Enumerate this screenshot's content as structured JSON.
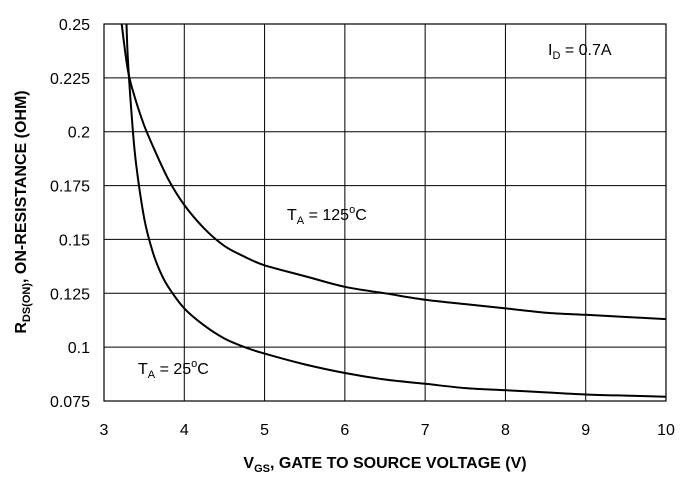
{
  "chart_data": {
    "type": "line",
    "xlabel": {
      "main": "V",
      "sub": "GS",
      "rest": ", GATE TO SOURCE VOLTAGE (V)"
    },
    "ylabel": {
      "main": "R",
      "sub": "DS(ON)",
      "rest": ", ON-RESISTANCE (OHM)"
    },
    "xlim": [
      3,
      10
    ],
    "ylim": [
      0.075,
      0.25
    ],
    "x_ticks": [
      "3",
      "4",
      "5",
      "6",
      "7",
      "8",
      "9",
      "10"
    ],
    "y_ticks": [
      "0.25",
      "0.225",
      "0.2",
      "0.175",
      "0.15",
      "0.125",
      "0.1",
      "0.075"
    ],
    "grid": true,
    "annotations": {
      "id": {
        "main": "I",
        "sub": "D",
        "rest": " = 0.7A"
      },
      "t125": {
        "main": "T",
        "sub": "A",
        "rest": " = 125",
        "sup": "o",
        "tail": "C"
      },
      "t25": {
        "main": "T",
        "sub": "A",
        "rest": " = 25",
        "sup": "o",
        "tail": "C"
      }
    },
    "series": [
      {
        "x": [
          3.22,
          3.3,
          3.4,
          3.5,
          3.6,
          3.8,
          4.0,
          4.25,
          4.5,
          4.75,
          5.0,
          5.5,
          6.0,
          6.5,
          7.0,
          7.5,
          8.0,
          8.5,
          9.0,
          9.5,
          10.0
        ],
        "y": [
          0.25,
          0.228,
          0.214,
          0.203,
          0.194,
          0.178,
          0.166,
          0.155,
          0.147,
          0.142,
          0.138,
          0.133,
          0.128,
          0.125,
          0.122,
          0.12,
          0.118,
          0.116,
          0.115,
          0.114,
          0.113
        ]
      },
      {
        "x": [
          3.28,
          3.3,
          3.35,
          3.4,
          3.5,
          3.6,
          3.7,
          3.8,
          4.0,
          4.25,
          4.5,
          4.75,
          5.0,
          5.5,
          6.0,
          6.5,
          7.0,
          7.5,
          8.0,
          8.5,
          9.0,
          9.5,
          10.0
        ],
        "y": [
          0.25,
          0.232,
          0.205,
          0.185,
          0.16,
          0.145,
          0.135,
          0.128,
          0.118,
          0.11,
          0.104,
          0.1,
          0.097,
          0.092,
          0.088,
          0.085,
          0.083,
          0.081,
          0.08,
          0.079,
          0.078,
          0.0775,
          0.077
        ]
      }
    ]
  }
}
